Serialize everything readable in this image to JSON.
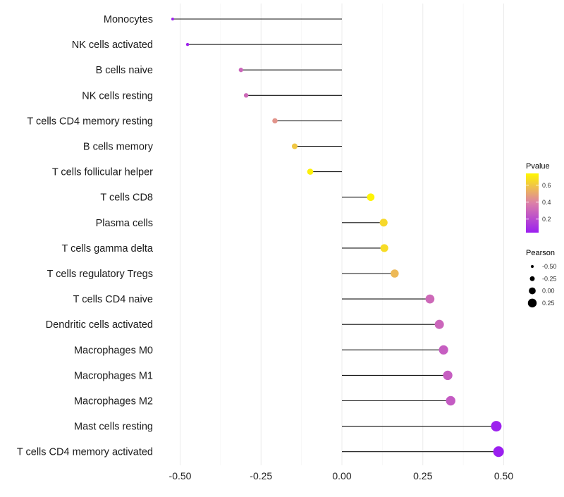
{
  "chart_data": {
    "type": "lollipop",
    "title": "",
    "xlabel": "",
    "ylabel": "",
    "xlim": [
      -0.55,
      0.55
    ],
    "xticks": [
      -0.5,
      -0.25,
      0,
      0.25,
      0.5
    ],
    "xtick_labels": [
      "-0.50",
      "-0.25",
      "0.00",
      "0.25",
      "0.50"
    ],
    "grid": true,
    "categories": [
      "Monocytes",
      "NK cells activated",
      "B cells naive",
      "NK cells resting",
      "T cells CD4 memory resting",
      "B cells memory",
      "T cells follicular helper",
      "T cells CD8",
      "Plasma cells",
      "T cells gamma delta",
      "T cells regulatory  Tregs ",
      "T cells CD4 naive",
      "Dendritic cells activated",
      "Macrophages M0",
      "Macrophages M1",
      "Macrophages M2",
      "Mast cells resting",
      "T cells CD4 memory activated"
    ],
    "pearson": [
      -0.523,
      -0.477,
      -0.312,
      -0.296,
      -0.207,
      -0.146,
      -0.098,
      0.089,
      0.129,
      0.131,
      0.163,
      0.272,
      0.301,
      0.314,
      0.327,
      0.336,
      0.477,
      0.484
    ],
    "pvalue": [
      0.05,
      0.06,
      0.3,
      0.31,
      0.45,
      0.6,
      0.72,
      0.73,
      0.65,
      0.66,
      0.56,
      0.31,
      0.3,
      0.27,
      0.27,
      0.26,
      0.05,
      0.04
    ],
    "legend": {
      "placement": "right",
      "color_title": "Pvalue",
      "color_ticks": [
        0.2,
        0.4,
        0.6
      ],
      "color_tick_labels": [
        "0.2",
        "0.4",
        "0.6"
      ],
      "color_range": [
        0.04,
        0.74
      ],
      "colors": {
        "low": "#9b1ff0",
        "mid": "#dc7fa8",
        "high": "#fff700"
      },
      "size_title": "Pearson",
      "size_values": [
        -0.5,
        -0.25,
        0,
        0.25
      ],
      "size_labels": [
        "-0.50",
        "-0.25",
        "0.00",
        "0.25"
      ]
    }
  }
}
